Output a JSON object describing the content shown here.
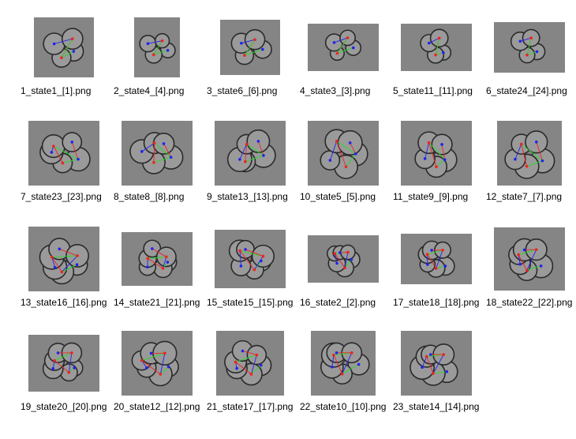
{
  "files": [
    {
      "name": "1_state1_[1].png",
      "w": 76,
      "h": 76,
      "cells": 4
    },
    {
      "name": "2_state4_[4].png",
      "w": 58,
      "h": 76,
      "cells": 4
    },
    {
      "name": "3_state6_[6].png",
      "w": 76,
      "h": 70,
      "cells": 4
    },
    {
      "name": "4_state3_[3].png",
      "w": 90,
      "h": 60,
      "cells": 4
    },
    {
      "name": "5_state11_[11].png",
      "w": 90,
      "h": 60,
      "cells": 4
    },
    {
      "name": "6_state24_[24].png",
      "w": 90,
      "h": 64,
      "cells": 4
    },
    {
      "name": "7_state23_[23].png",
      "w": 90,
      "h": 82,
      "cells": 5
    },
    {
      "name": "8_state8_[8].png",
      "w": 90,
      "h": 82,
      "cells": 5
    },
    {
      "name": "9_state13_[13].png",
      "w": 90,
      "h": 82,
      "cells": 5
    },
    {
      "name": "10_state5_[5].png",
      "w": 90,
      "h": 82,
      "cells": 5
    },
    {
      "name": "11_state9_[9].png",
      "w": 90,
      "h": 82,
      "cells": 5
    },
    {
      "name": "12_state7_[7].png",
      "w": 82,
      "h": 82,
      "cells": 5
    },
    {
      "name": "13_state16_[16].png",
      "w": 90,
      "h": 82,
      "cells": 6
    },
    {
      "name": "14_state21_[21].png",
      "w": 90,
      "h": 68,
      "cells": 6
    },
    {
      "name": "15_state15_[15].png",
      "w": 90,
      "h": 74,
      "cells": 6
    },
    {
      "name": "16_state2_[2].png",
      "w": 90,
      "h": 60,
      "cells": 6
    },
    {
      "name": "17_state18_[18].png",
      "w": 90,
      "h": 64,
      "cells": 6
    },
    {
      "name": "18_state22_[22].png",
      "w": 90,
      "h": 80,
      "cells": 6
    },
    {
      "name": "19_state20_[20].png",
      "w": 90,
      "h": 72,
      "cells": 6
    },
    {
      "name": "20_state12_[12].png",
      "w": 90,
      "h": 82,
      "cells": 6
    },
    {
      "name": "21_state17_[17].png",
      "w": 86,
      "h": 82,
      "cells": 6
    },
    {
      "name": "22_state10_[10].png",
      "w": 82,
      "h": 82,
      "cells": 6
    },
    {
      "name": "23_state14_[14].png",
      "w": 90,
      "h": 82,
      "cells": 6
    }
  ],
  "colors": {
    "thumb_bg": "#858585",
    "cell_rim": "#2a2a2a",
    "cell_fill": "#9a9a9a",
    "line_green": "#22dd22",
    "line_red": "#ee2222",
    "line_blue": "#2222ee"
  },
  "icons": {
    "thumbnail": "microscopy-cell-cluster-image"
  }
}
